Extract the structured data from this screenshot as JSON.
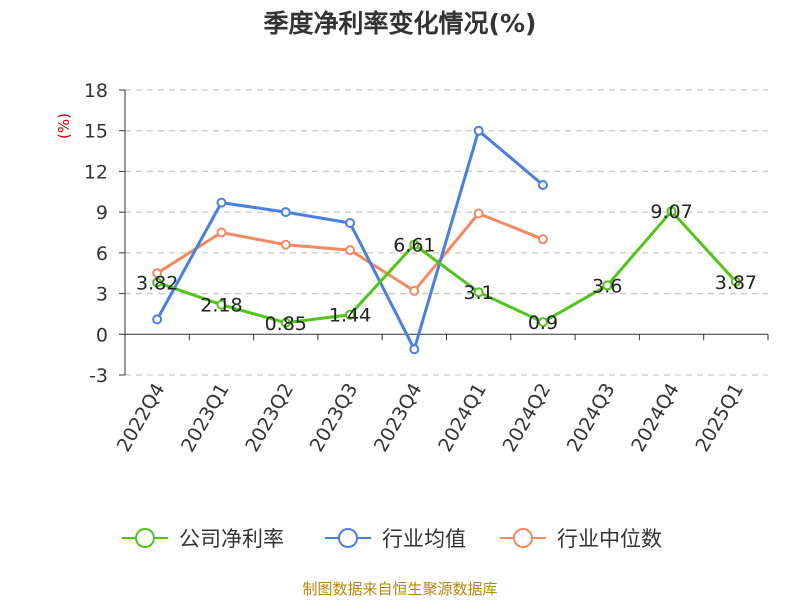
{
  "chart_data": {
    "type": "line",
    "title": "季度净利率变化情况(%)",
    "ylabel": "(%)",
    "xlabel": "",
    "categories": [
      "2022Q4",
      "2023Q1",
      "2023Q2",
      "2023Q3",
      "2023Q4",
      "2024Q1",
      "2024Q2",
      "2024Q3",
      "2024Q4",
      "2025Q1"
    ],
    "ylim": [
      -3,
      18
    ],
    "yticks": [
      -3,
      0,
      3,
      6,
      9,
      12,
      15,
      18
    ],
    "grid": true,
    "legend_position": "bottom",
    "series": [
      {
        "name": "公司净利率",
        "color": "#52c41a",
        "show_labels": true,
        "values": [
          3.82,
          2.18,
          0.85,
          1.44,
          6.61,
          3.1,
          0.9,
          3.6,
          9.07,
          3.87
        ],
        "labels": [
          "3.82",
          "2.18",
          "0.85",
          "1.44",
          "6.61",
          "3.1",
          "0.9",
          "3.6",
          "9.07",
          "3.87"
        ]
      },
      {
        "name": "行业均值",
        "color": "#4a7fe0",
        "show_labels": false,
        "values": [
          1.1,
          9.7,
          9.0,
          8.2,
          -1.1,
          15.0,
          11.0,
          null,
          null,
          null
        ]
      },
      {
        "name": "行业中位数",
        "color": "#f4895f",
        "show_labels": false,
        "values": [
          4.5,
          7.5,
          6.6,
          6.2,
          3.2,
          8.9,
          7.0,
          null,
          null,
          null
        ]
      }
    ]
  },
  "source": "制图数据来自恒生聚源数据库"
}
